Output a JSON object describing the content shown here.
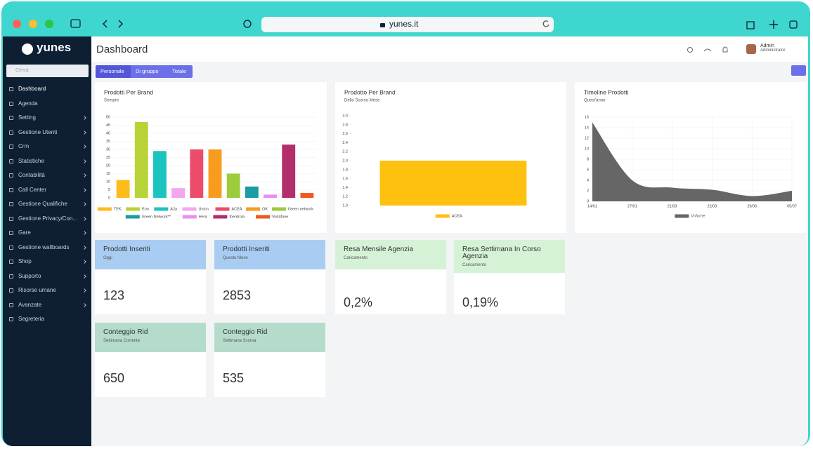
{
  "browser": {
    "url": "yunes.it"
  },
  "sidebar": {
    "logo": "yunes",
    "search": "Cerca",
    "items": [
      {
        "label": "Dashboard",
        "submenu": false
      },
      {
        "label": "Agenda",
        "submenu": false
      },
      {
        "label": "Setting",
        "submenu": true
      },
      {
        "label": "Gestione Utenti",
        "submenu": true
      },
      {
        "label": "Crm",
        "submenu": true
      },
      {
        "label": "Statistiche",
        "submenu": true
      },
      {
        "label": "Contabilità",
        "submenu": true
      },
      {
        "label": "Call Center",
        "submenu": true
      },
      {
        "label": "Gestione Qualifiche",
        "submenu": true
      },
      {
        "label": "Gestione Privacy/Con...",
        "submenu": true
      },
      {
        "label": "Gare",
        "submenu": true
      },
      {
        "label": "Gestione wallboards",
        "submenu": true
      },
      {
        "label": "Shop",
        "submenu": true
      },
      {
        "label": "Supporto",
        "submenu": true
      },
      {
        "label": "Risorse umane",
        "submenu": true
      },
      {
        "label": "Avanzate",
        "submenu": true
      },
      {
        "label": "Segreteria",
        "submenu": false
      }
    ]
  },
  "header": {
    "title": "Dashboard",
    "user": {
      "name": "Admin",
      "role": "Administrator"
    }
  },
  "tabs": [
    "Personale",
    "Di gruppo",
    "Totale"
  ],
  "chart_data": [
    {
      "type": "bar",
      "title": "Prodotti Per Brand",
      "subtitle": "Sempre",
      "categories": [
        "TEK",
        "Eon",
        "A2a",
        "Union",
        "ACEA",
        "OK",
        "Green network",
        "Green Network**",
        "Hera",
        "Iberdrola",
        "Vodafone"
      ],
      "values": [
        11,
        47,
        29,
        6,
        30,
        30,
        15,
        7,
        2,
        33,
        3
      ],
      "colors": [
        "#fbbc1c",
        "#b8d336",
        "#1cc4c0",
        "#f4a6ee",
        "#ec4b6b",
        "#f89c1f",
        "#9ccb3d",
        "#1a9ca2",
        "#e690ee",
        "#b22f6c",
        "#f0581f"
      ],
      "ylim": [
        0,
        50
      ],
      "yticks": [
        0,
        5,
        10,
        15,
        20,
        25,
        30,
        35,
        40,
        45,
        50
      ],
      "grid": true,
      "legend": "bottom"
    },
    {
      "type": "bar",
      "title": "Prodotto Per Brand",
      "subtitle": "Dello Scorso Mese",
      "categories": [
        "ACEA"
      ],
      "values": [
        2
      ],
      "colors": [
        "#fec110"
      ],
      "ylim": [
        1,
        3
      ],
      "yticks": [
        {
          "value": 1,
          "label": "1.0"
        },
        1.2,
        1.4,
        1.6,
        1.8,
        {
          "value": 2,
          "label": "2.0"
        },
        2.2,
        2.4,
        2.6,
        2.8,
        {
          "value": 3,
          "label": "3.0"
        }
      ],
      "grid": false,
      "legend": "bottom"
    },
    {
      "type": "area",
      "title": "Timeline Prodotti",
      "subtitle": "Quest'anno",
      "categories": [
        "14/01",
        "27/01",
        "21/03",
        "22/03",
        "29/06",
        "05/07"
      ],
      "series": [
        {
          "name": "Volume",
          "color": "#666666",
          "values": [
            15,
            4,
            2.6,
            2.2,
            1,
            2
          ]
        }
      ],
      "ylim": [
        0,
        16
      ],
      "yticks": [
        0,
        2,
        4,
        6,
        8,
        10,
        12,
        14,
        16
      ],
      "grid": true,
      "legend": "bottom"
    }
  ],
  "cards": [
    {
      "title": "Prodotti Inseriti",
      "subtitle": "Oggi",
      "value": 123,
      "color": "#a9cdf2"
    },
    {
      "title": "Prodotti Inseriti",
      "subtitle": "Questo Mese",
      "value": 2853,
      "color": "#a9cdf2"
    },
    {
      "title": "Resa Mensile Agenzia",
      "subtitle": "Caricamento",
      "value": "0,2%",
      "color": "#d5f2d6"
    },
    {
      "title": "Resa Settimana In Corso Agenzia",
      "subtitle": "Caricamento",
      "value": "0,19%",
      "color": "#d5f2d6"
    },
    {
      "title": "Conteggio Rid",
      "subtitle": "Settimana Corrente",
      "value": 650,
      "color": "#b5dccb"
    },
    {
      "title": "Conteggio Rid",
      "subtitle": "Settimana Scorsa",
      "value": 535,
      "color": "#b5dccb"
    }
  ]
}
